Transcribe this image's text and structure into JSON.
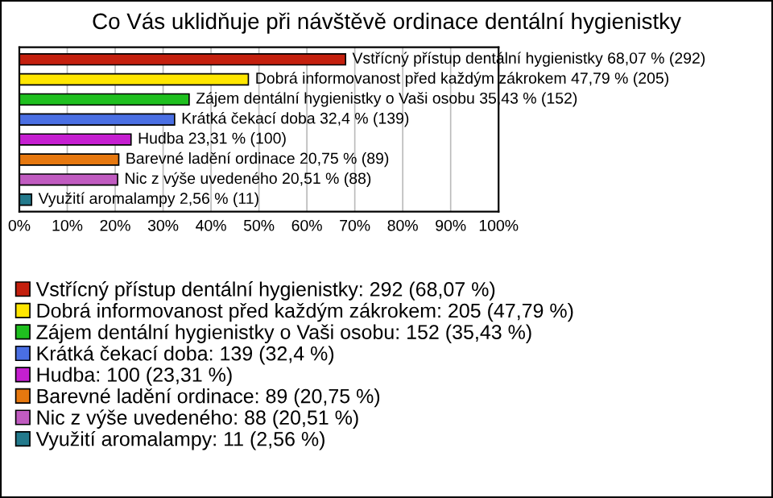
{
  "chart_data": {
    "type": "bar",
    "orientation": "horizontal",
    "stacked": true,
    "title": "Co Vás uklidňuje při návštěvě ordinace dentální hygienistky",
    "categories": [
      null,
      null,
      null,
      null,
      null,
      null,
      null,
      null
    ],
    "series": [
      {
        "name": "Vstřícný přístup dentální hygienistky: 292 (68,07 %)",
        "color": "#c4200e",
        "values": [
          68.07,
          null,
          null,
          null,
          null,
          null,
          null,
          null
        ],
        "value_labels": [
          "Vstřícný přístup dentální hygienistky 68,07 % (292)",
          null,
          null,
          null,
          null,
          null,
          null,
          null
        ]
      },
      {
        "name": "Dobrá informovanost před každým zákrokem: 205 (47,79 %)",
        "color": "#ffe600",
        "values": [
          null,
          47.79,
          null,
          null,
          null,
          null,
          null,
          null
        ],
        "value_labels": [
          null,
          "Dobrá informovanost před každým zákrokem 47,79 % (205)",
          null,
          null,
          null,
          null,
          null,
          null
        ]
      },
      {
        "name": "Zájem dentální hygienistky o Vaši osobu: 152 (35,43 %)",
        "color": "#1fbf1f",
        "values": [
          null,
          null,
          35.43,
          null,
          null,
          null,
          null,
          null
        ],
        "value_labels": [
          null,
          null,
          "Zájem dentální hygienistky o Vaši osobu 35,43 % (152)",
          null,
          null,
          null,
          null,
          null
        ]
      },
      {
        "name": "Krátká čekací doba: 139 (32,4 %)",
        "color": "#4a6fe3",
        "values": [
          null,
          null,
          null,
          32.4,
          null,
          null,
          null,
          null
        ],
        "value_labels": [
          null,
          null,
          null,
          "Krátká čekací doba 32,4 % (139)",
          null,
          null,
          null,
          null
        ]
      },
      {
        "name": "Hudba: 100 (23,31 %)",
        "color": "#c51fd0",
        "values": [
          null,
          null,
          null,
          null,
          23.31,
          null,
          null,
          null
        ],
        "value_labels": [
          null,
          null,
          null,
          null,
          "Hudba 23,31 % (100)",
          null,
          null,
          null
        ]
      },
      {
        "name": "Barevné ladění ordinace: 89 (20,75 %)",
        "color": "#e6780f",
        "values": [
          null,
          null,
          null,
          null,
          null,
          20.75,
          null,
          null
        ],
        "value_labels": [
          null,
          null,
          null,
          null,
          null,
          "Barevné ladění ordinace 20,75 % (89)",
          null,
          null
        ]
      },
      {
        "name": "Nic z výše uvedeného: 88 (20,51 %)",
        "color": "#c05bc0",
        "values": [
          null,
          null,
          null,
          null,
          null,
          null,
          20.51,
          null
        ],
        "value_labels": [
          null,
          null,
          null,
          null,
          null,
          null,
          "Nic z výše uvedeného 20,51 % (88)",
          null
        ]
      },
      {
        "name": "Využití aromalampy: 11 (2,56 %)",
        "color": "#237a8c",
        "values": [
          null,
          null,
          null,
          null,
          null,
          null,
          null,
          2.56
        ],
        "value_labels": [
          null,
          null,
          null,
          null,
          null,
          null,
          null,
          "Využití aromalampy 2,56 % (11)"
        ]
      }
    ],
    "xlim": [
      0,
      100
    ],
    "xticks": [
      {
        "value": 0,
        "label": "0%"
      },
      {
        "value": 10,
        "label": "10%"
      },
      {
        "value": 20,
        "label": "20%"
      },
      {
        "value": 30,
        "label": "30%"
      },
      {
        "value": 40,
        "label": "40%"
      },
      {
        "value": 50,
        "label": "50%"
      },
      {
        "value": 60,
        "label": "60%"
      },
      {
        "value": 70,
        "label": "70%"
      },
      {
        "value": 80,
        "label": "80%"
      },
      {
        "value": 90,
        "label": "90%"
      },
      {
        "value": 100,
        "label": "100%"
      }
    ],
    "grid": "x",
    "legend": "bottom"
  }
}
